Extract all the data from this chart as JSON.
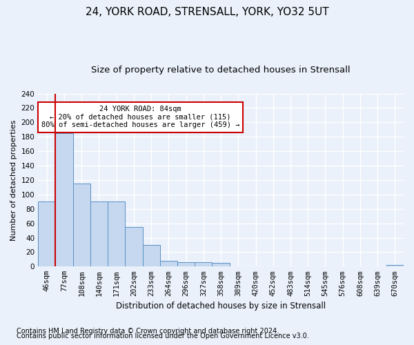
{
  "title1": "24, YORK ROAD, STRENSALL, YORK, YO32 5UT",
  "title2": "Size of property relative to detached houses in Strensall",
  "xlabel": "Distribution of detached houses by size in Strensall",
  "ylabel": "Number of detached properties",
  "bar_values": [
    90,
    185,
    115,
    90,
    90,
    55,
    30,
    8,
    6,
    6,
    5,
    0,
    0,
    0,
    0,
    0,
    0,
    0,
    0,
    0,
    2
  ],
  "bin_labels": [
    "46sqm",
    "77sqm",
    "108sqm",
    "140sqm",
    "171sqm",
    "202sqm",
    "233sqm",
    "264sqm",
    "296sqm",
    "327sqm",
    "358sqm",
    "389sqm",
    "420sqm",
    "452sqm",
    "483sqm",
    "514sqm",
    "545sqm",
    "576sqm",
    "608sqm",
    "639sqm",
    "670sqm"
  ],
  "bar_color": "#c5d8f0",
  "bar_edge_color": "#5a8fc3",
  "annotation_text": "24 YORK ROAD: 84sqm\n← 20% of detached houses are smaller (115)\n80% of semi-detached houses are larger (459) →",
  "annotation_box_color": "#ffffff",
  "annotation_box_edge_color": "#cc0000",
  "redline_x": 1.5,
  "ylim": [
    0,
    240
  ],
  "yticks": [
    0,
    20,
    40,
    60,
    80,
    100,
    120,
    140,
    160,
    180,
    200,
    220,
    240
  ],
  "footer_line1": "Contains HM Land Registry data © Crown copyright and database right 2024.",
  "footer_line2": "Contains public sector information licensed under the Open Government Licence v3.0.",
  "bg_color": "#eaf1fb",
  "plot_bg_color": "#eaf1fb",
  "grid_color": "#ffffff",
  "title1_fontsize": 11,
  "title2_fontsize": 9.5,
  "xlabel_fontsize": 8.5,
  "ylabel_fontsize": 8,
  "tick_fontsize": 7.5,
  "footer_fontsize": 7
}
